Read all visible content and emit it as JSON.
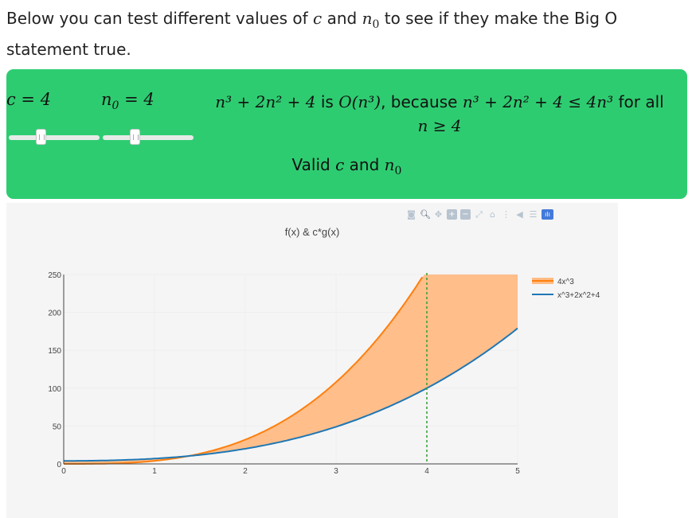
{
  "intro": {
    "part1": "Below you can test different values of ",
    "c": "c",
    "and": " and ",
    "n0": "n",
    "n0_sub": "0",
    "part2": " to see if they make the Big O statement true."
  },
  "controls": {
    "c_label": "c = 4",
    "c_value": 4,
    "c_range": [
      1,
      10
    ],
    "n0_label": "n",
    "n0_sub": "0",
    "n0_eq": " = 4",
    "n0_value": 4,
    "n0_range": [
      1,
      10
    ]
  },
  "statement": {
    "f": "n³ + 2n² + 4",
    "is": " is ",
    "bigo": "O(n³)",
    "because": ", because ",
    "ineq": "n³ + 2n² + 4 ≤ 4n³",
    "forall": " for all",
    "cond": "n ≥ 4"
  },
  "result": {
    "valid_pre": "Valid ",
    "c": "c",
    "and": " and ",
    "n0": "n",
    "n0_sub": "0"
  },
  "colors": {
    "panel": "#2ecc71",
    "series_cg": "#ff7f0e",
    "series_f": "#1f77b4",
    "fill": "#ffbb84",
    "marker_line": "#2ca02c"
  },
  "modebar": {
    "icons": [
      "camera-icon",
      "zoom-icon",
      "pan-icon",
      "zoom-in-icon",
      "zoom-out-icon",
      "autoscale-icon",
      "reset-axes-icon",
      "spike-lines-icon",
      "hover-closest-icon",
      "hover-compare-icon",
      "plotly-logo-icon"
    ]
  },
  "chart_data": {
    "type": "line",
    "title": "f(x) & c*g(x)",
    "xlim": [
      0,
      5
    ],
    "ylim": [
      0,
      250
    ],
    "xticks": [
      0,
      1,
      2,
      3,
      4,
      5
    ],
    "yticks": [
      0,
      50,
      100,
      150,
      200,
      250
    ],
    "grid": true,
    "legend_position": "right",
    "series": [
      {
        "name": "4x^3",
        "color": "#ff7f0e",
        "formula": "4*x^3"
      },
      {
        "name": "x^3+2x^2+4",
        "color": "#1f77b4",
        "formula": "x^3+2*x^2+4"
      }
    ],
    "fill_between": true,
    "vertical_marker_x": 4
  }
}
